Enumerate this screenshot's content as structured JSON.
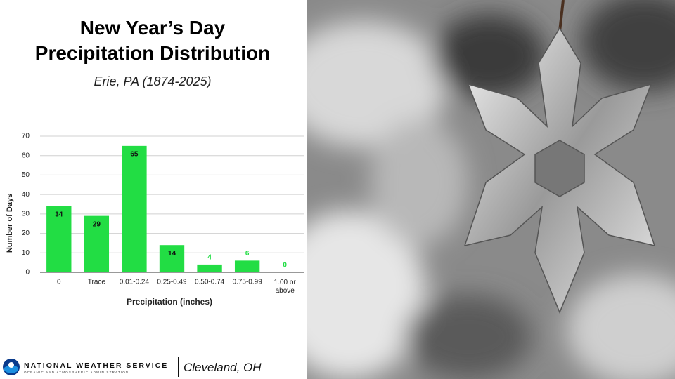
{
  "chart_data": {
    "type": "bar",
    "title": "New Year’s Day Precipitation Distribution",
    "subtitle": "Erie, PA (1874-2025)",
    "x_label": "Precipitation (inches)",
    "y_label": "Number of Days",
    "categories": [
      "0",
      "Trace",
      "0.01-0.24",
      "0.25-0.49",
      "0.50-0.74",
      "0.75-0.99",
      "1.00 or above"
    ],
    "values": [
      34,
      29,
      65,
      14,
      4,
      6,
      0
    ],
    "color": "#22dd44",
    "ylim": [
      0,
      70
    ],
    "yticks": [
      0,
      10,
      20,
      30,
      40,
      50,
      60,
      70
    ],
    "grid": true
  },
  "footer": {
    "agency": "NATIONAL WEATHER SERVICE",
    "parent": "OCEANIC AND ATMOSPHERIC ADMINISTRATION",
    "office": "Cleveland, OH"
  }
}
